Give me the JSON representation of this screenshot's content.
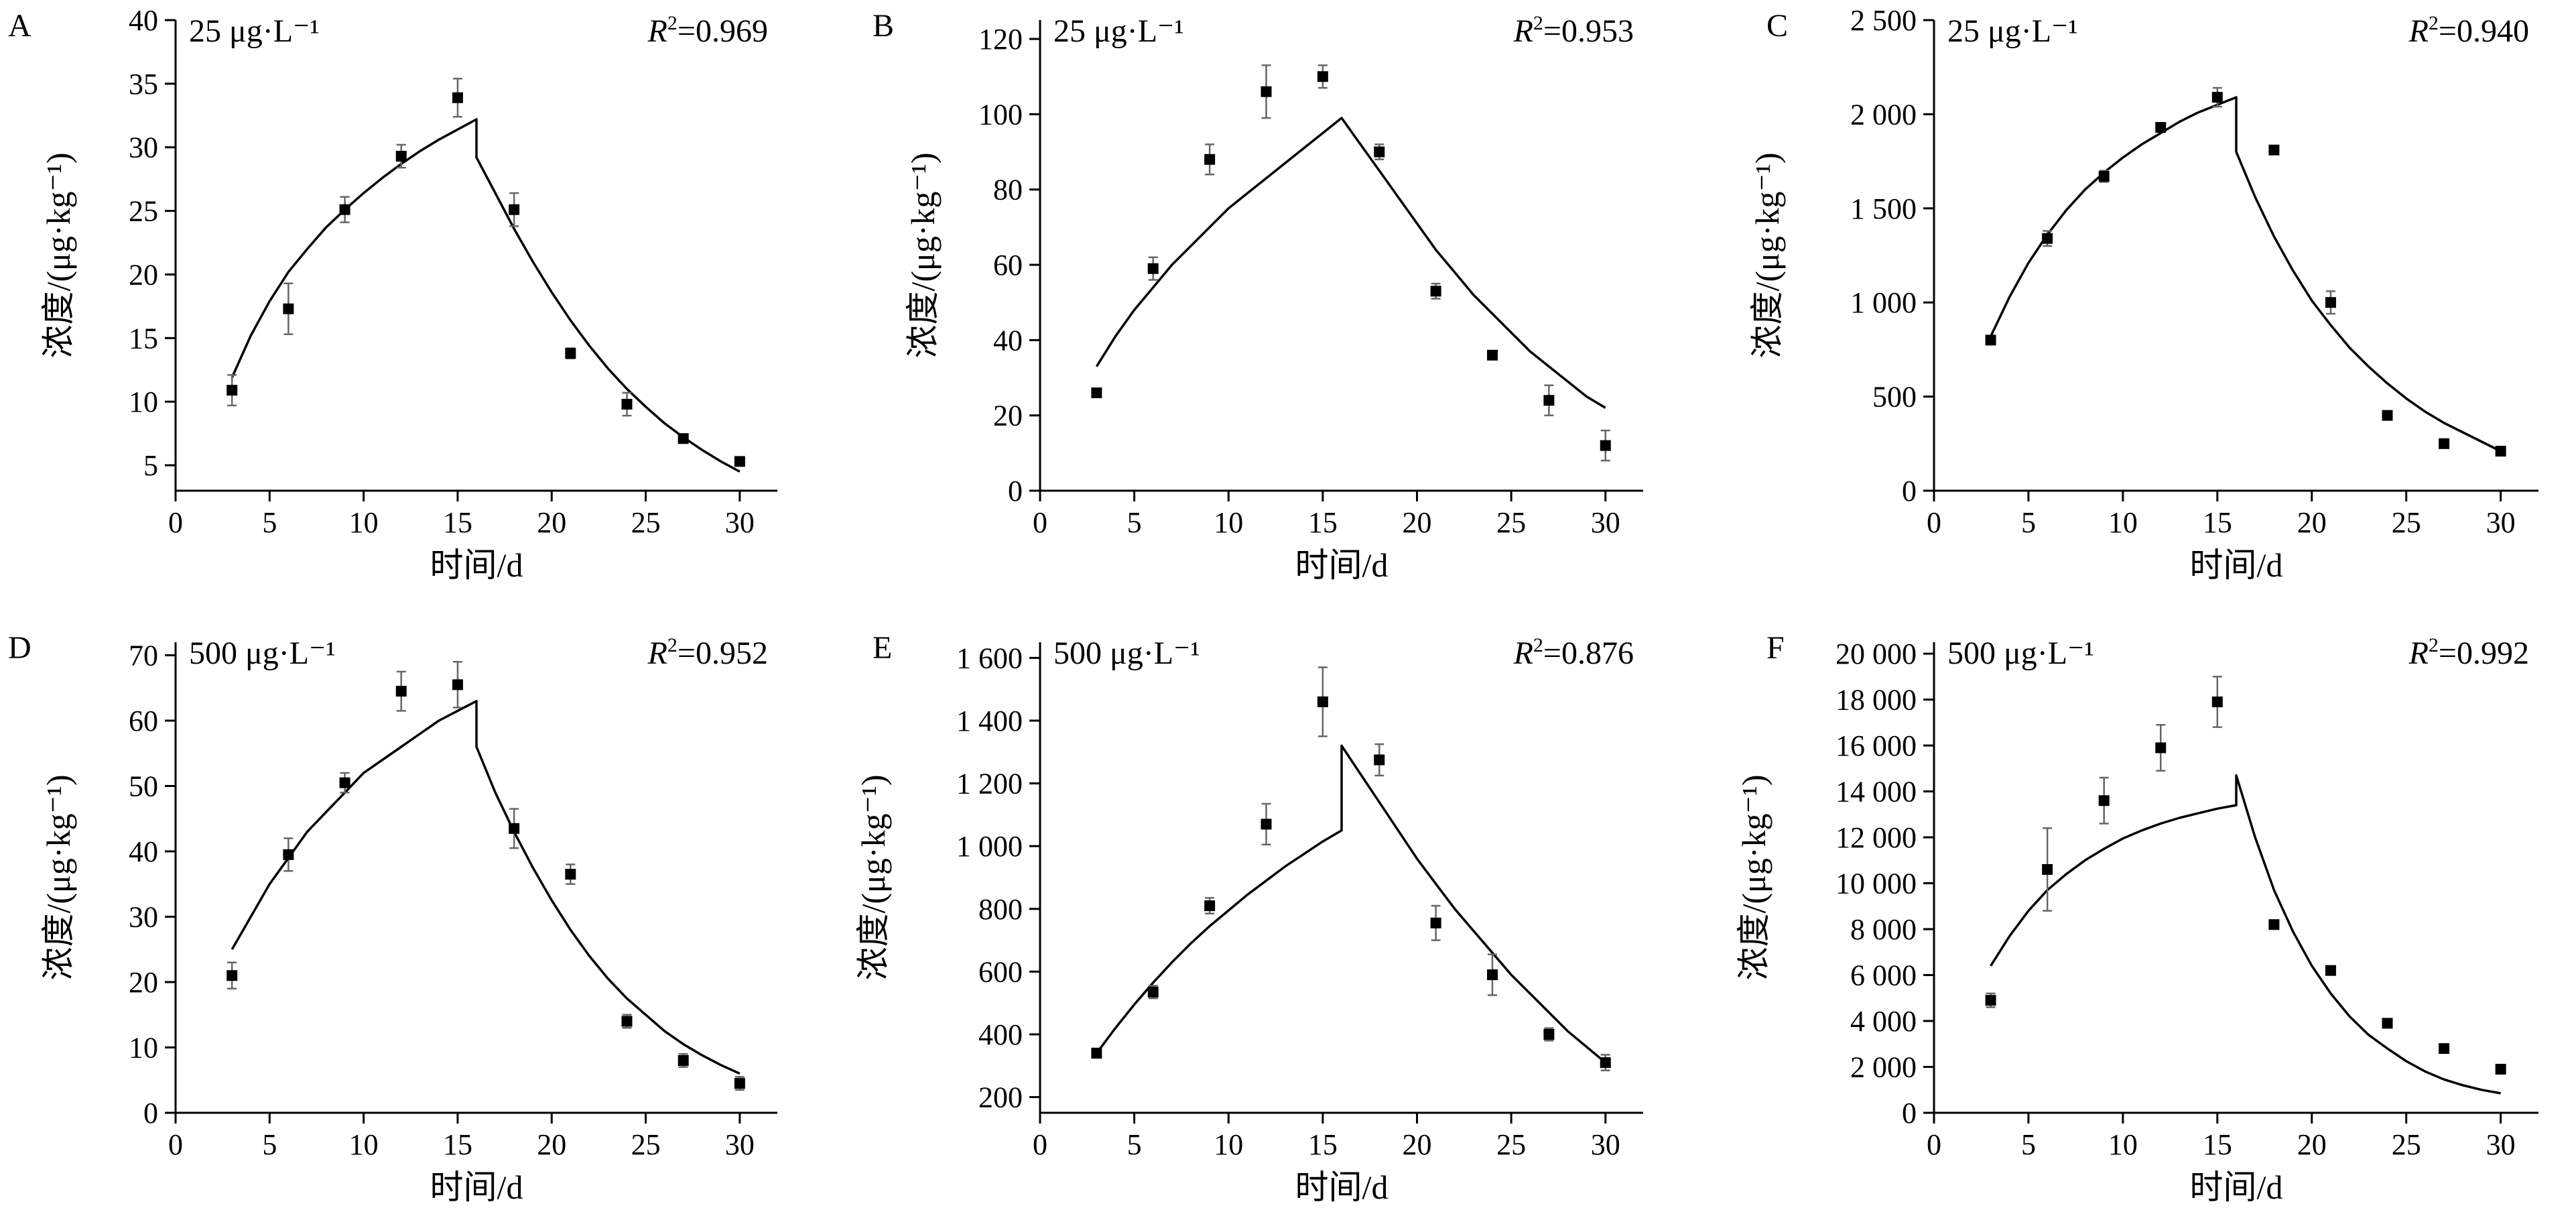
{
  "figure": {
    "panels_order": [
      "A",
      "B",
      "C",
      "D",
      "E",
      "F"
    ]
  },
  "chart_data": [
    {
      "panel": "A",
      "type": "scatter",
      "concentration_label": "25 μg·L⁻¹",
      "r2_text": "=0.969",
      "xlabel": "时间/d",
      "ylabel": "浓度/(μg·kg⁻¹)",
      "xlim": [
        0,
        32
      ],
      "ylim": [
        3,
        40
      ],
      "xticks": [
        0,
        5,
        10,
        15,
        20,
        25,
        30
      ],
      "xtick_labels": [
        "0",
        "5",
        "10",
        "15",
        "20",
        "25",
        "30"
      ],
      "yticks": [
        5,
        10,
        15,
        20,
        25,
        30,
        35,
        40
      ],
      "ytick_labels": [
        "5",
        "10",
        "15",
        "20",
        "25",
        "30",
        "35",
        "40"
      ],
      "points": [
        {
          "x": 3,
          "y": 10.9,
          "err": 1.2
        },
        {
          "x": 6,
          "y": 17.3,
          "err": 2.0
        },
        {
          "x": 9,
          "y": 25.1,
          "err": 1.0
        },
        {
          "x": 12,
          "y": 29.3,
          "err": 0.9
        },
        {
          "x": 15,
          "y": 33.9,
          "err": 1.5
        },
        {
          "x": 18,
          "y": 25.1,
          "err": 1.3
        },
        {
          "x": 21,
          "y": 13.8,
          "err": 0.4
        },
        {
          "x": 24,
          "y": 9.8,
          "err": 0.9
        },
        {
          "x": 27,
          "y": 7.1,
          "err": 0.3
        },
        {
          "x": 30,
          "y": 5.3,
          "err": 0.3
        }
      ],
      "fit_line": [
        [
          3,
          11.9
        ],
        [
          4,
          15.2
        ],
        [
          5,
          17.9
        ],
        [
          6,
          20.2
        ],
        [
          7,
          22.0
        ],
        [
          8,
          23.7
        ],
        [
          9,
          25.1
        ],
        [
          10,
          26.4
        ],
        [
          11,
          27.6
        ],
        [
          12,
          28.7
        ],
        [
          13,
          29.7
        ],
        [
          14,
          30.6
        ],
        [
          15,
          31.4
        ],
        [
          16,
          32.2
        ],
        [
          16,
          29.2
        ],
        [
          17,
          26.4
        ],
        [
          18,
          23.6
        ],
        [
          19,
          21.0
        ],
        [
          20,
          18.6
        ],
        [
          21,
          16.4
        ],
        [
          22,
          14.4
        ],
        [
          23,
          12.6
        ],
        [
          24,
          11.0
        ],
        [
          25,
          9.6
        ],
        [
          26,
          8.3
        ],
        [
          27,
          7.2
        ],
        [
          28,
          6.2
        ],
        [
          29,
          5.3
        ],
        [
          30,
          4.5
        ]
      ]
    },
    {
      "panel": "B",
      "type": "scatter",
      "concentration_label": "25 μg·L⁻¹",
      "r2_text": "=0.953",
      "xlabel": "时间/d",
      "ylabel": "浓度/(μg·kg⁻¹)",
      "xlim": [
        0,
        32
      ],
      "ylim": [
        0,
        125
      ],
      "xticks": [
        0,
        5,
        10,
        15,
        20,
        25,
        30
      ],
      "xtick_labels": [
        "0",
        "5",
        "10",
        "15",
        "20",
        "25",
        "30"
      ],
      "yticks": [
        0,
        20,
        40,
        60,
        80,
        100,
        120
      ],
      "ytick_labels": [
        "0",
        "20",
        "40",
        "60",
        "80",
        "100",
        "120"
      ],
      "points": [
        {
          "x": 3,
          "y": 26,
          "err": 1
        },
        {
          "x": 6,
          "y": 59,
          "err": 3
        },
        {
          "x": 9,
          "y": 88,
          "err": 4
        },
        {
          "x": 12,
          "y": 106,
          "err": 7
        },
        {
          "x": 15,
          "y": 110,
          "err": 3
        },
        {
          "x": 18,
          "y": 90,
          "err": 2
        },
        {
          "x": 21,
          "y": 53,
          "err": 2
        },
        {
          "x": 24,
          "y": 36,
          "err": 1
        },
        {
          "x": 27,
          "y": 24,
          "err": 4
        },
        {
          "x": 30,
          "y": 12,
          "err": 4
        }
      ],
      "fit_line": [
        [
          3,
          33
        ],
        [
          4,
          41
        ],
        [
          5,
          48
        ],
        [
          6,
          54
        ],
        [
          7,
          60
        ],
        [
          8,
          65
        ],
        [
          9,
          70
        ],
        [
          10,
          75
        ],
        [
          11,
          79
        ],
        [
          12,
          83
        ],
        [
          13,
          87
        ],
        [
          14,
          91
        ],
        [
          15,
          95
        ],
        [
          16,
          99
        ],
        [
          17,
          92
        ],
        [
          18,
          85
        ],
        [
          19,
          78
        ],
        [
          20,
          71
        ],
        [
          21,
          64
        ],
        [
          22,
          58
        ],
        [
          23,
          52
        ],
        [
          24,
          47
        ],
        [
          25,
          42
        ],
        [
          26,
          37
        ],
        [
          27,
          33
        ],
        [
          28,
          29
        ],
        [
          29,
          25
        ],
        [
          30,
          22
        ]
      ]
    },
    {
      "panel": "C",
      "type": "scatter",
      "concentration_label": "25 μg·L⁻¹",
      "r2_text": "=0.940",
      "xlabel": "时间/d",
      "ylabel": "浓度/(μg·kg⁻¹)",
      "xlim": [
        0,
        32
      ],
      "ylim": [
        0,
        2500
      ],
      "xticks": [
        0,
        5,
        10,
        15,
        20,
        25,
        30
      ],
      "xtick_labels": [
        "0",
        "5",
        "10",
        "15",
        "20",
        "25",
        "30"
      ],
      "yticks": [
        0,
        500,
        1000,
        1500,
        2000,
        2500
      ],
      "ytick_labels": [
        "0",
        "500",
        "1 000",
        "1 500",
        "2 000",
        "2 500"
      ],
      "points": [
        {
          "x": 3,
          "y": 800,
          "err": 20
        },
        {
          "x": 6,
          "y": 1340,
          "err": 40
        },
        {
          "x": 9,
          "y": 1670,
          "err": 30
        },
        {
          "x": 12,
          "y": 1930,
          "err": 20
        },
        {
          "x": 15,
          "y": 2090,
          "err": 50
        },
        {
          "x": 18,
          "y": 1810,
          "err": 20
        },
        {
          "x": 21,
          "y": 1000,
          "err": 60
        },
        {
          "x": 24,
          "y": 400,
          "err": 10
        },
        {
          "x": 27,
          "y": 250,
          "err": 10
        },
        {
          "x": 30,
          "y": 210,
          "err": 10
        }
      ],
      "fit_line": [
        [
          3,
          820
        ],
        [
          4,
          1030
        ],
        [
          5,
          1210
        ],
        [
          6,
          1360
        ],
        [
          7,
          1490
        ],
        [
          8,
          1600
        ],
        [
          9,
          1690
        ],
        [
          10,
          1770
        ],
        [
          11,
          1840
        ],
        [
          12,
          1900
        ],
        [
          13,
          1960
        ],
        [
          14,
          2010
        ],
        [
          15,
          2050
        ],
        [
          16,
          2090
        ],
        [
          16,
          1800
        ],
        [
          17,
          1560
        ],
        [
          18,
          1350
        ],
        [
          19,
          1170
        ],
        [
          20,
          1010
        ],
        [
          21,
          880
        ],
        [
          22,
          760
        ],
        [
          23,
          660
        ],
        [
          24,
          570
        ],
        [
          25,
          490
        ],
        [
          26,
          420
        ],
        [
          27,
          360
        ],
        [
          28,
          310
        ],
        [
          29,
          260
        ],
        [
          30,
          210
        ]
      ]
    },
    {
      "panel": "D",
      "type": "scatter",
      "concentration_label": "500 μg·L⁻¹",
      "r2_text": "=0.952",
      "xlabel": "时间/d",
      "ylabel": "浓度/(μg·kg⁻¹)",
      "xlim": [
        0,
        32
      ],
      "ylim": [
        0,
        72
      ],
      "xticks": [
        0,
        5,
        10,
        15,
        20,
        25,
        30
      ],
      "xtick_labels": [
        "0",
        "5",
        "10",
        "15",
        "20",
        "25",
        "30"
      ],
      "yticks": [
        0,
        10,
        20,
        30,
        40,
        50,
        60,
        70
      ],
      "ytick_labels": [
        "0",
        "10",
        "20",
        "30",
        "40",
        "50",
        "60",
        "70"
      ],
      "points": [
        {
          "x": 3,
          "y": 21,
          "err": 2
        },
        {
          "x": 6,
          "y": 39.5,
          "err": 2.5
        },
        {
          "x": 9,
          "y": 50.5,
          "err": 1.5
        },
        {
          "x": 12,
          "y": 64.5,
          "err": 3
        },
        {
          "x": 15,
          "y": 65.5,
          "err": 3.5
        },
        {
          "x": 18,
          "y": 43.5,
          "err": 3
        },
        {
          "x": 21,
          "y": 36.5,
          "err": 1.5
        },
        {
          "x": 24,
          "y": 14,
          "err": 1
        },
        {
          "x": 27,
          "y": 8,
          "err": 1
        },
        {
          "x": 30,
          "y": 4.5,
          "err": 1
        }
      ],
      "fit_line": [
        [
          3,
          25
        ],
        [
          4,
          30
        ],
        [
          5,
          35
        ],
        [
          6,
          39
        ],
        [
          7,
          43
        ],
        [
          8,
          46
        ],
        [
          9,
          49
        ],
        [
          10,
          52
        ],
        [
          11,
          54
        ],
        [
          12,
          56
        ],
        [
          13,
          58
        ],
        [
          14,
          60
        ],
        [
          15,
          61.5
        ],
        [
          16,
          63
        ],
        [
          16,
          56
        ],
        [
          17,
          49
        ],
        [
          18,
          43
        ],
        [
          19,
          37.5
        ],
        [
          20,
          32.5
        ],
        [
          21,
          28
        ],
        [
          22,
          24
        ],
        [
          23,
          20.5
        ],
        [
          24,
          17.5
        ],
        [
          25,
          15
        ],
        [
          26,
          12.5
        ],
        [
          27,
          10.5
        ],
        [
          28,
          8.8
        ],
        [
          29,
          7.3
        ],
        [
          30,
          6
        ]
      ]
    },
    {
      "panel": "E",
      "type": "scatter",
      "concentration_label": "500 μg·L⁻¹",
      "r2_text": "=0.876",
      "xlabel": "时间/d",
      "ylabel": "浓度/(μg·kg⁻¹)",
      "xlim": [
        0,
        32
      ],
      "ylim": [
        150,
        1650
      ],
      "xticks": [
        0,
        5,
        10,
        15,
        20,
        25,
        30
      ],
      "xtick_labels": [
        "0",
        "5",
        "10",
        "15",
        "20",
        "25",
        "30"
      ],
      "yticks": [
        200,
        400,
        600,
        800,
        1000,
        1200,
        1400,
        1600
      ],
      "ytick_labels": [
        "200",
        "400",
        "600",
        "800",
        "1 000",
        "1 200",
        "1 400",
        "1 600"
      ],
      "points": [
        {
          "x": 3,
          "y": 340,
          "err": 15
        },
        {
          "x": 6,
          "y": 535,
          "err": 20
        },
        {
          "x": 9,
          "y": 810,
          "err": 25
        },
        {
          "x": 12,
          "y": 1070,
          "err": 65
        },
        {
          "x": 15,
          "y": 1460,
          "err": 110
        },
        {
          "x": 18,
          "y": 1275,
          "err": 50
        },
        {
          "x": 21,
          "y": 755,
          "err": 55
        },
        {
          "x": 24,
          "y": 590,
          "err": 65
        },
        {
          "x": 27,
          "y": 400,
          "err": 20
        },
        {
          "x": 30,
          "y": 310,
          "err": 25
        }
      ],
      "fit_line": [
        [
          3,
          340
        ],
        [
          4,
          420
        ],
        [
          5,
          495
        ],
        [
          6,
          565
        ],
        [
          7,
          630
        ],
        [
          8,
          690
        ],
        [
          9,
          745
        ],
        [
          10,
          795
        ],
        [
          11,
          845
        ],
        [
          12,
          890
        ],
        [
          13,
          935
        ],
        [
          14,
          975
        ],
        [
          15,
          1015
        ],
        [
          16,
          1050
        ],
        [
          16,
          1320
        ],
        [
          17,
          1230
        ],
        [
          18,
          1140
        ],
        [
          19,
          1050
        ],
        [
          20,
          960
        ],
        [
          21,
          880
        ],
        [
          22,
          800
        ],
        [
          23,
          730
        ],
        [
          24,
          660
        ],
        [
          25,
          590
        ],
        [
          26,
          530
        ],
        [
          27,
          470
        ],
        [
          28,
          410
        ],
        [
          29,
          360
        ],
        [
          30,
          310
        ]
      ]
    },
    {
      "panel": "F",
      "type": "scatter",
      "concentration_label": "500 μg·L⁻¹",
      "r2_text": "=0.992",
      "xlabel": "时间/d",
      "ylabel": "浓度/(μg·kg⁻¹)",
      "xlim": [
        0,
        32
      ],
      "ylim": [
        0,
        20500
      ],
      "xticks": [
        0,
        5,
        10,
        15,
        20,
        25,
        30
      ],
      "xtick_labels": [
        "0",
        "5",
        "10",
        "15",
        "20",
        "25",
        "30"
      ],
      "yticks": [
        0,
        2000,
        4000,
        6000,
        8000,
        10000,
        12000,
        14000,
        16000,
        18000,
        20000
      ],
      "ytick_labels": [
        "0",
        "2 000",
        "4 000",
        "6 000",
        "8 000",
        "10 000",
        "12 000",
        "14 000",
        "16 000",
        "18 000",
        "20 000"
      ],
      "points": [
        {
          "x": 3,
          "y": 4900,
          "err": 300
        },
        {
          "x": 6,
          "y": 10600,
          "err": 1800
        },
        {
          "x": 9,
          "y": 13600,
          "err": 1000
        },
        {
          "x": 12,
          "y": 15900,
          "err": 1000
        },
        {
          "x": 15,
          "y": 17900,
          "err": 1100
        },
        {
          "x": 18,
          "y": 8200,
          "err": 100
        },
        {
          "x": 21,
          "y": 6200,
          "err": 100
        },
        {
          "x": 24,
          "y": 3900,
          "err": 100
        },
        {
          "x": 27,
          "y": 2800,
          "err": 100
        },
        {
          "x": 30,
          "y": 1900,
          "err": 100
        }
      ],
      "fit_line": [
        [
          3,
          6400
        ],
        [
          4,
          7700
        ],
        [
          5,
          8800
        ],
        [
          6,
          9700
        ],
        [
          7,
          10400
        ],
        [
          8,
          11000
        ],
        [
          9,
          11500
        ],
        [
          10,
          11950
        ],
        [
          11,
          12300
        ],
        [
          12,
          12600
        ],
        [
          13,
          12850
        ],
        [
          14,
          13050
        ],
        [
          15,
          13250
        ],
        [
          16,
          13400
        ],
        [
          16,
          14700
        ],
        [
          17,
          12000
        ],
        [
          18,
          9700
        ],
        [
          19,
          7900
        ],
        [
          20,
          6400
        ],
        [
          21,
          5200
        ],
        [
          22,
          4200
        ],
        [
          23,
          3400
        ],
        [
          24,
          2800
        ],
        [
          25,
          2250
        ],
        [
          26,
          1800
        ],
        [
          27,
          1450
        ],
        [
          28,
          1200
        ],
        [
          29,
          1000
        ],
        [
          30,
          850
        ]
      ]
    }
  ]
}
